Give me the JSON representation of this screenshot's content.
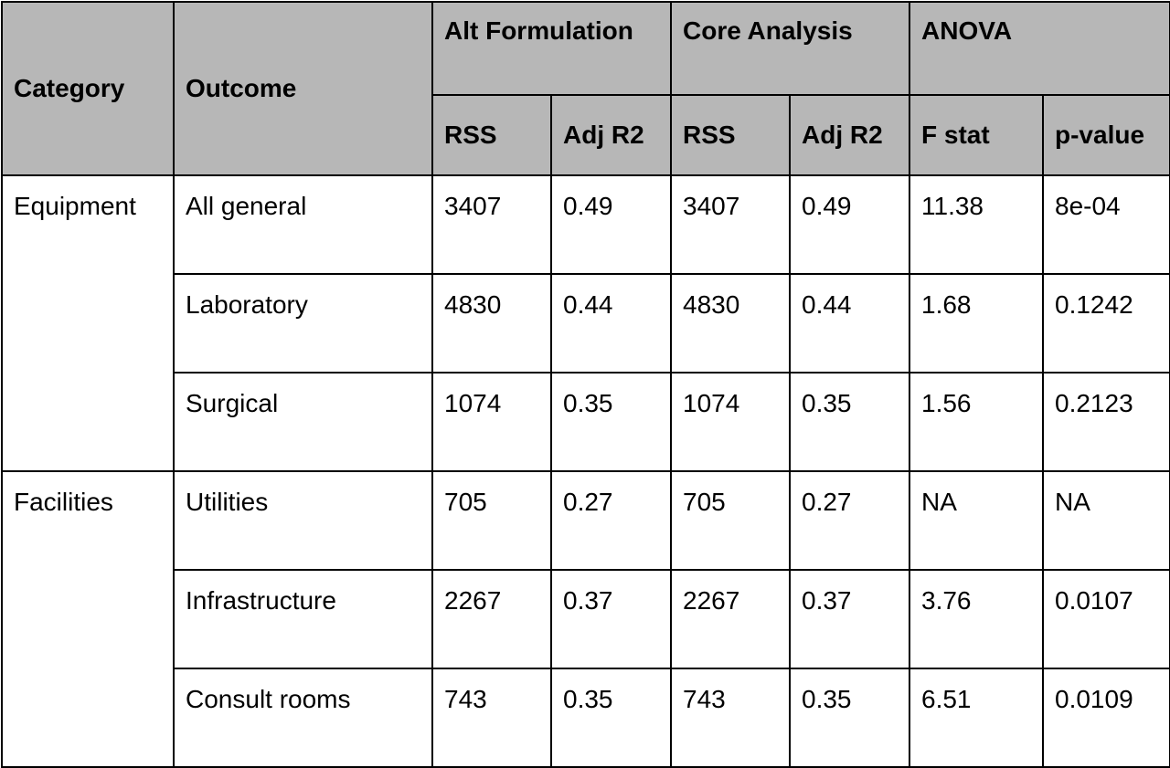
{
  "header": {
    "category": "Category",
    "outcome": "Outcome",
    "groups": [
      {
        "label": "Alt Formulation",
        "subs": [
          "RSS",
          "Adj R2"
        ]
      },
      {
        "label": "Core Analysis",
        "subs": [
          "RSS",
          "Adj R2"
        ]
      },
      {
        "label": "ANOVA",
        "subs": [
          "F stat",
          "p-value"
        ]
      }
    ]
  },
  "groups": [
    {
      "category": "Equipment",
      "rows": [
        {
          "outcome": "All general",
          "alt_rss": "3407",
          "alt_adj_r2": "0.49",
          "core_rss": "3407",
          "core_adj_r2": "0.49",
          "f_stat": "11.38",
          "p_value": "8e-04"
        },
        {
          "outcome": "Laboratory",
          "alt_rss": "4830",
          "alt_adj_r2": "0.44",
          "core_rss": "4830",
          "core_adj_r2": "0.44",
          "f_stat": "1.68",
          "p_value": "0.1242"
        },
        {
          "outcome": "Surgical",
          "alt_rss": "1074",
          "alt_adj_r2": "0.35",
          "core_rss": "1074",
          "core_adj_r2": "0.35",
          "f_stat": "1.56",
          "p_value": "0.2123"
        }
      ]
    },
    {
      "category": "Facilities",
      "rows": [
        {
          "outcome": "Utilities",
          "alt_rss": "705",
          "alt_adj_r2": "0.27",
          "core_rss": "705",
          "core_adj_r2": "0.27",
          "f_stat": "NA",
          "p_value": "NA"
        },
        {
          "outcome": "Infrastructure",
          "alt_rss": "2267",
          "alt_adj_r2": "0.37",
          "core_rss": "2267",
          "core_adj_r2": "0.37",
          "f_stat": "3.76",
          "p_value": "0.0107"
        },
        {
          "outcome": "Consult rooms",
          "alt_rss": "743",
          "alt_adj_r2": "0.35",
          "core_rss": "743",
          "core_adj_r2": "0.35",
          "f_stat": "6.51",
          "p_value": "0.0109"
        }
      ]
    }
  ]
}
